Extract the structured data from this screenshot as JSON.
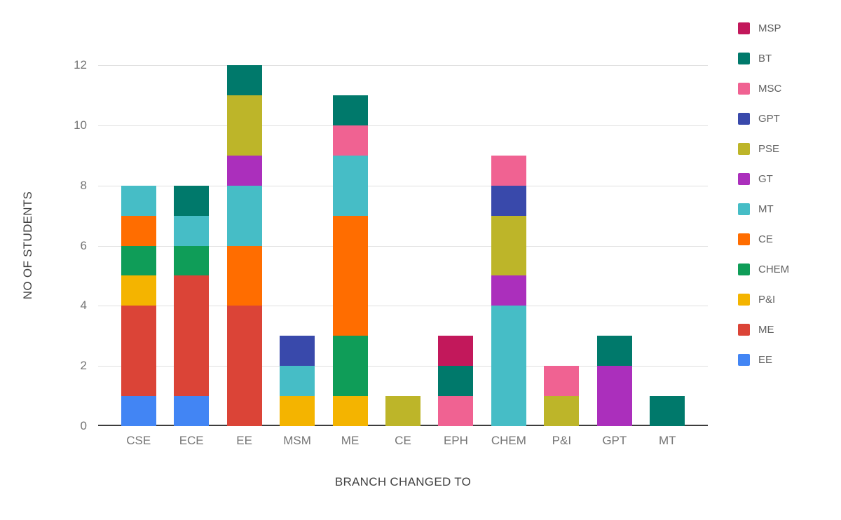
{
  "chart_data": {
    "type": "bar",
    "stacked": true,
    "title": "",
    "xlabel": "BRANCH CHANGED TO",
    "ylabel": "NO OF STUDENTS",
    "ylim": [
      0,
      12
    ],
    "yticks": [
      0,
      2,
      4,
      6,
      8,
      10,
      12
    ],
    "grid": true,
    "legend_position": "right",
    "categories": [
      "CSE",
      "ECE",
      "EE",
      "MSM",
      "ME",
      "CE",
      "EPH",
      "CHEM",
      "P&I",
      "GPT",
      "MT"
    ],
    "series": [
      {
        "name": "EE",
        "color": "#4285f4",
        "values": [
          1,
          1,
          0,
          0,
          0,
          0,
          0,
          0,
          0,
          0,
          0
        ]
      },
      {
        "name": "ME",
        "color": "#db4437",
        "values": [
          3,
          4,
          4,
          0,
          0,
          0,
          0,
          0,
          0,
          0,
          0
        ]
      },
      {
        "name": "P&I",
        "color": "#f4b400",
        "values": [
          1,
          0,
          0,
          1,
          1,
          0,
          0,
          0,
          0,
          0,
          0
        ]
      },
      {
        "name": "CHEM",
        "color": "#0f9d58",
        "values": [
          1,
          1,
          0,
          0,
          2,
          0,
          0,
          0,
          0,
          0,
          0
        ]
      },
      {
        "name": "CE",
        "color": "#ff6d00",
        "values": [
          1,
          0,
          2,
          0,
          4,
          0,
          0,
          0,
          0,
          0,
          0
        ]
      },
      {
        "name": "MT",
        "color": "#46bdc6",
        "values": [
          1,
          1,
          2,
          1,
          2,
          0,
          0,
          4,
          0,
          0,
          0
        ]
      },
      {
        "name": "GT",
        "color": "#ab2fbc",
        "values": [
          0,
          0,
          1,
          0,
          0,
          0,
          0,
          1,
          0,
          2,
          0
        ]
      },
      {
        "name": "PSE",
        "color": "#bdb529",
        "values": [
          0,
          0,
          2,
          0,
          0,
          1,
          0,
          2,
          1,
          0,
          0
        ]
      },
      {
        "name": "GPT",
        "color": "#3949ab",
        "values": [
          0,
          0,
          0,
          1,
          0,
          0,
          0,
          1,
          0,
          0,
          0
        ]
      },
      {
        "name": "MSC",
        "color": "#f06292",
        "values": [
          0,
          0,
          0,
          0,
          1,
          0,
          1,
          1,
          1,
          0,
          0
        ]
      },
      {
        "name": "BT",
        "color": "#00796b",
        "values": [
          0,
          1,
          1,
          0,
          1,
          0,
          1,
          0,
          0,
          1,
          1
        ]
      },
      {
        "name": "MSP",
        "color": "#c2185b",
        "values": [
          0,
          0,
          0,
          0,
          0,
          0,
          1,
          0,
          0,
          0,
          0
        ]
      }
    ],
    "legend_order_top_to_bottom": [
      "MSP",
      "BT",
      "MSC",
      "GPT",
      "PSE",
      "GT",
      "MT",
      "CE",
      "CHEM",
      "P&I",
      "ME",
      "EE"
    ]
  }
}
